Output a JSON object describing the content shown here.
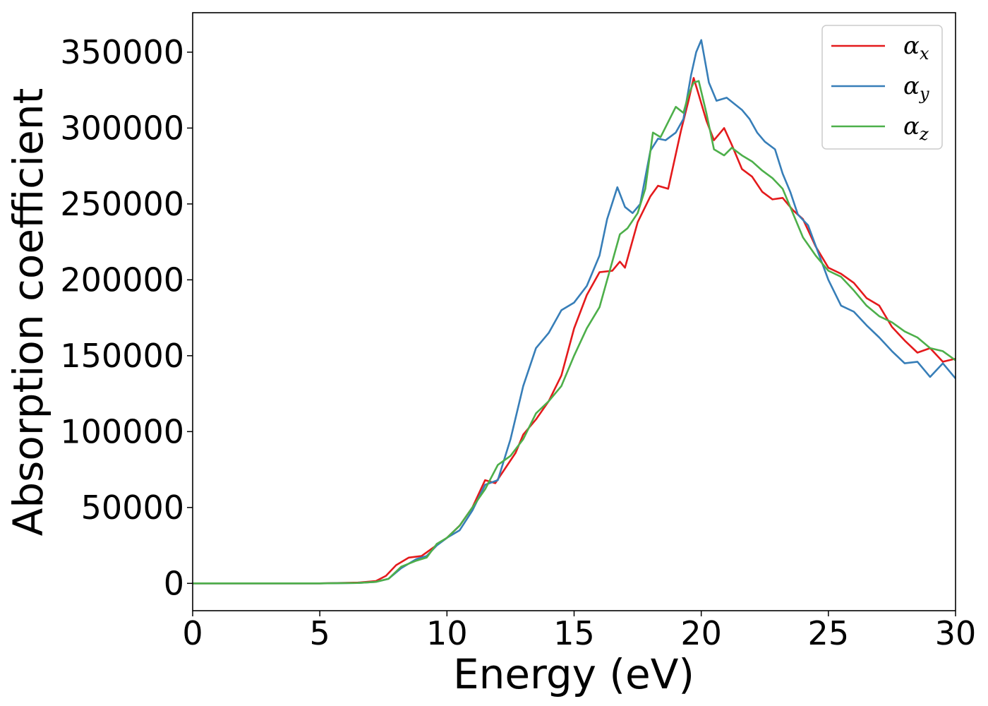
{
  "chart_data": {
    "type": "line",
    "xlabel": "Energy (eV)",
    "ylabel": "Absorption coefficient",
    "xlim": [
      0,
      30
    ],
    "ylim": [
      -18000,
      376000
    ],
    "grid": false,
    "legend_position": "top-right",
    "x_ticks": [
      "0",
      "5",
      "10",
      "15",
      "20",
      "25",
      "30"
    ],
    "y_ticks": [
      "0",
      "50000",
      "100000",
      "150000",
      "200000",
      "250000",
      "300000",
      "350000"
    ],
    "series": [
      {
        "name_symbol": "α",
        "name_subscript": "x",
        "color": "#e41a1c",
        "x": [
          0,
          5,
          6.5,
          7.2,
          7.6,
          8.0,
          8.5,
          9.0,
          9.5,
          10.0,
          10.5,
          11.0,
          11.5,
          11.9,
          12.3,
          12.7,
          13.0,
          13.5,
          14.0,
          14.5,
          15.0,
          15.5,
          16.0,
          16.5,
          16.8,
          17.0,
          17.5,
          18.0,
          18.3,
          18.7,
          19.2,
          19.5,
          19.7,
          19.9,
          20.2,
          20.5,
          20.9,
          21.2,
          21.6,
          22.0,
          22.4,
          22.8,
          23.2,
          23.6,
          24.0,
          24.5,
          25.0,
          25.5,
          26.0,
          26.5,
          27.0,
          27.5,
          28.0,
          28.5,
          29.0,
          29.5,
          30.0
        ],
        "values": [
          0,
          0,
          500,
          1500,
          5000,
          12000,
          17000,
          18000,
          24000,
          30000,
          38000,
          50000,
          68000,
          66000,
          76000,
          86000,
          98000,
          108000,
          120000,
          137000,
          168000,
          190000,
          205000,
          206000,
          212000,
          208000,
          238000,
          255000,
          262000,
          260000,
          298000,
          318000,
          333000,
          322000,
          305000,
          292000,
          300000,
          289000,
          273000,
          268000,
          258000,
          253000,
          254000,
          246000,
          240000,
          222000,
          208000,
          204000,
          198000,
          188000,
          183000,
          169000,
          160000,
          152000,
          155000,
          146000,
          148000
        ]
      },
      {
        "name_symbol": "α",
        "name_subscript": "y",
        "color": "#377eb8",
        "x": [
          0,
          5,
          6.5,
          7.2,
          7.7,
          8.2,
          8.8,
          9.2,
          9.6,
          10.0,
          10.5,
          11.0,
          11.5,
          12.0,
          12.5,
          13.0,
          13.5,
          14.0,
          14.5,
          15.0,
          15.5,
          16.0,
          16.3,
          16.7,
          17.0,
          17.3,
          17.6,
          18.0,
          18.3,
          18.6,
          19.0,
          19.3,
          19.6,
          19.8,
          20.0,
          20.3,
          20.6,
          21.0,
          21.3,
          21.6,
          21.9,
          22.2,
          22.5,
          22.9,
          23.2,
          23.5,
          23.8,
          24.2,
          24.6,
          25.0,
          25.5,
          26.0,
          26.5,
          27.0,
          27.5,
          28.0,
          28.5,
          29.0,
          29.5,
          30.0
        ],
        "values": [
          0,
          0,
          300,
          1000,
          3000,
          10000,
          16000,
          18000,
          25000,
          30000,
          35000,
          48000,
          65000,
          68000,
          95000,
          130000,
          155000,
          165000,
          180000,
          185000,
          196000,
          216000,
          240000,
          261000,
          248000,
          244000,
          250000,
          285000,
          293000,
          292000,
          297000,
          306000,
          335000,
          350000,
          358000,
          330000,
          318000,
          320000,
          316000,
          312000,
          306000,
          297000,
          291000,
          286000,
          270000,
          258000,
          243000,
          236000,
          218000,
          200000,
          183000,
          179000,
          170000,
          162000,
          153000,
          145000,
          146000,
          136000,
          145000,
          135000
        ]
      },
      {
        "name_symbol": "α",
        "name_subscript": "z",
        "color": "#4daf4a",
        "x": [
          0,
          5,
          6.5,
          7.2,
          7.7,
          8.2,
          8.8,
          9.2,
          9.6,
          10.0,
          10.5,
          11.0,
          11.5,
          12.0,
          12.5,
          13.0,
          13.5,
          14.0,
          14.5,
          15.0,
          15.5,
          16.0,
          16.5,
          16.8,
          17.1,
          17.5,
          17.8,
          18.1,
          18.4,
          18.7,
          19.0,
          19.3,
          19.5,
          19.7,
          19.9,
          20.2,
          20.5,
          20.9,
          21.2,
          21.6,
          22.0,
          22.4,
          22.8,
          23.2,
          23.6,
          24.0,
          24.5,
          25.0,
          25.5,
          26.0,
          26.5,
          27.0,
          27.5,
          28.0,
          28.5,
          29.0,
          29.5,
          30.0
        ],
        "values": [
          0,
          0,
          300,
          1000,
          3000,
          11000,
          15000,
          17000,
          26000,
          30000,
          38000,
          50000,
          62000,
          78000,
          84000,
          95000,
          112000,
          120000,
          130000,
          150000,
          168000,
          182000,
          212000,
          230000,
          234000,
          244000,
          260000,
          297000,
          294000,
          304000,
          314000,
          310000,
          322000,
          330000,
          331000,
          310000,
          286000,
          282000,
          287000,
          282000,
          278000,
          272000,
          267000,
          260000,
          244000,
          228000,
          216000,
          206000,
          202000,
          193000,
          183000,
          176000,
          172000,
          166000,
          162000,
          155000,
          153000,
          147000
        ]
      }
    ]
  }
}
